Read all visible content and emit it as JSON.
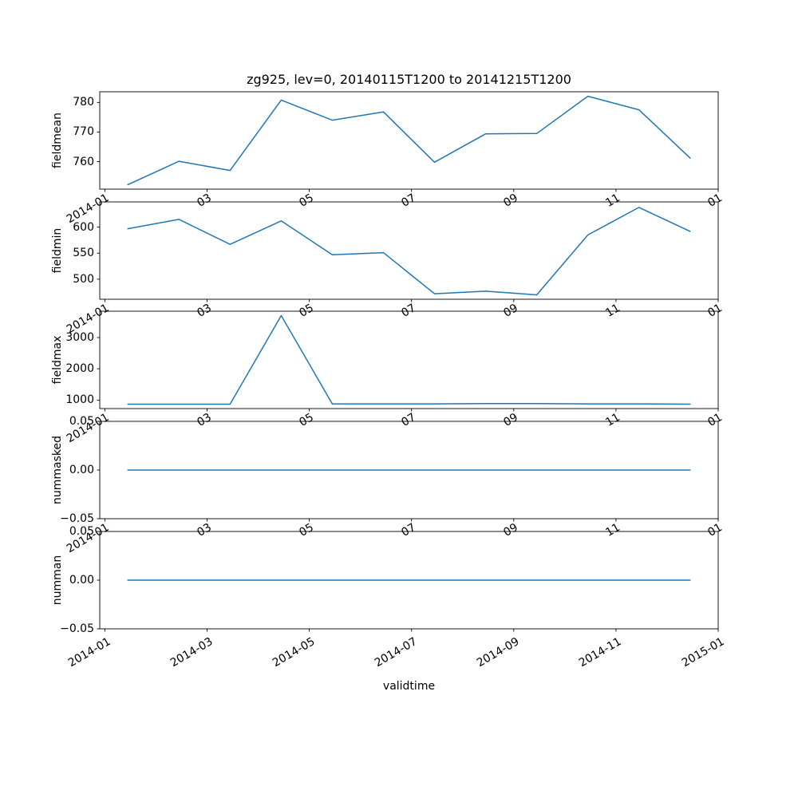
{
  "figure": {
    "title": "zg925, lev=0, 20140115T1200 to 20141215T1200",
    "xlabel": "validtime",
    "background": "#ffffff",
    "line_color": "#1f77b4"
  },
  "chart_data": [
    {
      "type": "line",
      "ylabel": "fieldmean",
      "x": [
        0.45,
        1.45,
        2.45,
        3.45,
        4.45,
        5.45,
        6.45,
        7.45,
        8.45,
        9.45,
        10.45,
        11.45
      ],
      "values": [
        752.2,
        760.1,
        757.0,
        780.8,
        774.0,
        776.8,
        759.8,
        769.4,
        769.5,
        782.1,
        777.5,
        761.2
      ],
      "ylim": [
        750.7,
        783.6
      ],
      "yticks": [
        760,
        770,
        780
      ],
      "ytick_labels": [
        "760",
        "770",
        "780"
      ],
      "xlim": [
        -0.1,
        12.0
      ],
      "xticks": [
        0,
        2,
        4,
        6,
        8,
        10,
        12
      ],
      "xtick_labels": [
        "2014-01",
        "03",
        "05",
        "07",
        "09",
        "11",
        "01"
      ]
    },
    {
      "type": "line",
      "ylabel": "fieldmin",
      "x": [
        0.45,
        1.45,
        2.45,
        3.45,
        4.45,
        5.45,
        6.45,
        7.45,
        8.45,
        9.45,
        10.45,
        11.45
      ],
      "values": [
        597,
        615,
        567,
        612,
        547,
        551,
        472,
        477,
        470,
        585,
        638,
        592
      ],
      "ylim": [
        461.5,
        648.5
      ],
      "yticks": [
        500,
        550,
        600
      ],
      "ytick_labels": [
        "500",
        "550",
        "600"
      ],
      "xlim": [
        -0.1,
        12.0
      ],
      "xticks": [
        0,
        2,
        4,
        6,
        8,
        10,
        12
      ],
      "xtick_labels": [
        "2014-01",
        "03",
        "05",
        "07",
        "09",
        "11",
        "01"
      ]
    },
    {
      "type": "line",
      "ylabel": "fieldmax",
      "x": [
        0.45,
        1.45,
        2.45,
        3.45,
        4.45,
        5.45,
        6.45,
        7.45,
        8.45,
        9.45,
        10.45,
        11.45
      ],
      "values": [
        870,
        870,
        870,
        3700,
        880,
        880,
        880,
        890,
        890,
        880,
        880,
        870
      ],
      "ylim": [
        728.5,
        3841.5
      ],
      "yticks": [
        1000,
        2000,
        3000
      ],
      "ytick_labels": [
        "1000",
        "2000",
        "3000"
      ],
      "xlim": [
        -0.1,
        12.0
      ],
      "xticks": [
        0,
        2,
        4,
        6,
        8,
        10,
        12
      ],
      "xtick_labels": [
        "2014-01",
        "03",
        "05",
        "07",
        "09",
        "11",
        "01"
      ]
    },
    {
      "type": "line",
      "ylabel": "nummasked",
      "x": [
        0.45,
        1.45,
        2.45,
        3.45,
        4.45,
        5.45,
        6.45,
        7.45,
        8.45,
        9.45,
        10.45,
        11.45
      ],
      "values": [
        0,
        0,
        0,
        0,
        0,
        0,
        0,
        0,
        0,
        0,
        0,
        0
      ],
      "ylim": [
        -0.05,
        0.05
      ],
      "yticks": [
        -0.05,
        0,
        0.05
      ],
      "ytick_labels": [
        "−0.05",
        "0.00",
        "0.05"
      ],
      "xlim": [
        -0.1,
        12.0
      ],
      "xticks": [
        0,
        2,
        4,
        6,
        8,
        10,
        12
      ],
      "xtick_labels": [
        "2014-01",
        "03",
        "05",
        "07",
        "09",
        "11",
        "01"
      ]
    },
    {
      "type": "line",
      "ylabel": "numman",
      "x": [
        0.45,
        1.45,
        2.45,
        3.45,
        4.45,
        5.45,
        6.45,
        7.45,
        8.45,
        9.45,
        10.45,
        11.45
      ],
      "values": [
        0,
        0,
        0,
        0,
        0,
        0,
        0,
        0,
        0,
        0,
        0,
        0
      ],
      "ylim": [
        -0.05,
        0.05
      ],
      "yticks": [
        -0.05,
        0,
        0.05
      ],
      "ytick_labels": [
        "−0.05",
        "0.00",
        "0.05"
      ],
      "xlim": [
        -0.1,
        12.0
      ],
      "xticks": [
        0,
        2,
        4,
        6,
        8,
        10,
        12
      ],
      "xtick_labels": [
        "2014-01",
        "2014-03",
        "2014-05",
        "2014-07",
        "2014-09",
        "2014-11",
        "2015-01"
      ]
    }
  ]
}
